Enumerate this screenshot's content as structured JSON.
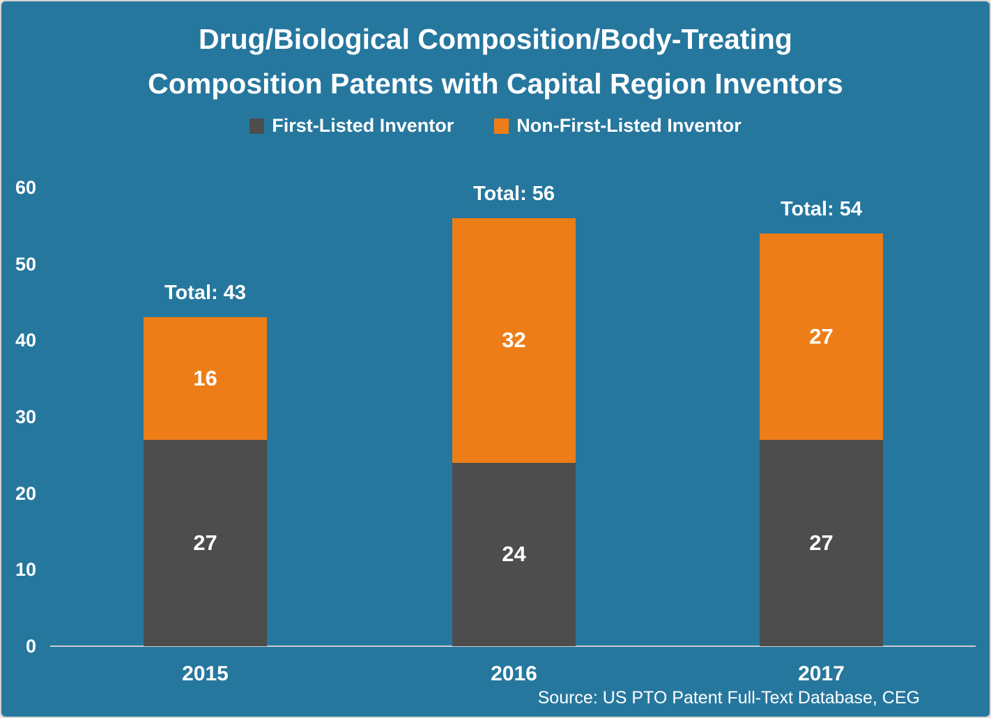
{
  "title": {
    "line1": "Drug/Biological Composition/Body-Treating",
    "line2": "Composition Patents with Capital Region Inventors"
  },
  "legend": {
    "items": [
      {
        "label": "First-Listed Inventor",
        "color": "#4d4d4d"
      },
      {
        "label": "Non-First-Listed Inventor",
        "color": "#ed7d17"
      }
    ]
  },
  "source": "Source: US PTO Patent Full-Text Database, CEG",
  "colors": {
    "background": "#26779e",
    "first_listed": "#4d4d4d",
    "non_first_listed": "#ed7d17",
    "axis_line": "#c9cdd2",
    "text": "#ffffff"
  },
  "chart_data": {
    "type": "bar",
    "stacked": true,
    "title": "Drug/Biological Composition/Body-Treating Composition Patents with Capital Region Inventors",
    "categories": [
      "2015",
      "2016",
      "2017"
    ],
    "series": [
      {
        "name": "First-Listed Inventor",
        "color": "#4d4d4d",
        "values": [
          27,
          24,
          27
        ]
      },
      {
        "name": "Non-First-Listed Inventor",
        "color": "#ed7d17",
        "values": [
          16,
          32,
          27
        ]
      }
    ],
    "totals": [
      43,
      56,
      54
    ],
    "total_label_prefix": "Total: ",
    "xlabel": "",
    "ylabel": "",
    "ylim": [
      0,
      60
    ],
    "y_ticks": [
      0,
      10,
      20,
      30,
      40,
      50,
      60
    ],
    "grid": false,
    "legend_position": "top",
    "annotation": "Source: US PTO Patent Full-Text Database, CEG"
  }
}
